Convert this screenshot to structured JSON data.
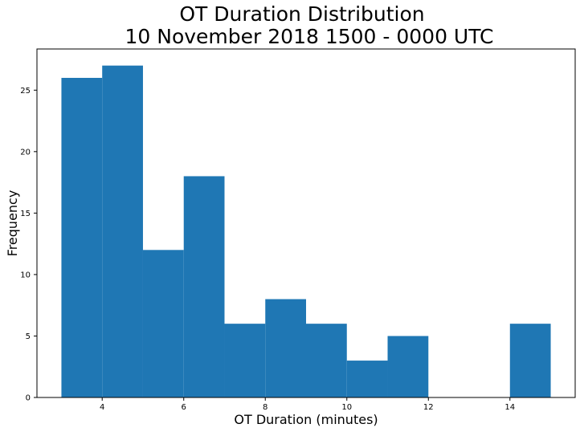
{
  "chart_data": {
    "type": "bar",
    "title": "OT Duration Distribution",
    "subtitle": "10 November 2018 1500 - 0000 UTC",
    "xlabel": "OT Duration (minutes)",
    "ylabel": "Frequency",
    "bins": [
      {
        "x0": 3,
        "x1": 4,
        "value": 26
      },
      {
        "x0": 4,
        "x1": 5,
        "value": 27
      },
      {
        "x0": 5,
        "x1": 6,
        "value": 12
      },
      {
        "x0": 6,
        "x1": 7,
        "value": 18
      },
      {
        "x0": 7,
        "x1": 8,
        "value": 6
      },
      {
        "x0": 8,
        "x1": 9,
        "value": 8
      },
      {
        "x0": 9,
        "x1": 10,
        "value": 6
      },
      {
        "x0": 10,
        "x1": 11,
        "value": 3
      },
      {
        "x0": 11,
        "x1": 12,
        "value": 5
      },
      {
        "x0": 12,
        "x1": 13,
        "value": 0
      },
      {
        "x0": 13,
        "x1": 14,
        "value": 0
      },
      {
        "x0": 14,
        "x1": 15,
        "value": 6
      }
    ],
    "xlim": [
      2.4,
      15.6
    ],
    "ylim": [
      0,
      28.35
    ],
    "xticks": [
      4,
      6,
      8,
      10,
      12,
      14
    ],
    "xtick_labels": [
      "4",
      "6",
      "8",
      "10",
      "12",
      "14"
    ],
    "yticks": [
      0,
      5,
      10,
      15,
      20,
      25
    ],
    "ytick_labels": [
      "0",
      "5",
      "10",
      "15",
      "20",
      "25"
    ],
    "bar_color": "#1f77b4",
    "grid": false,
    "legend": "none"
  }
}
